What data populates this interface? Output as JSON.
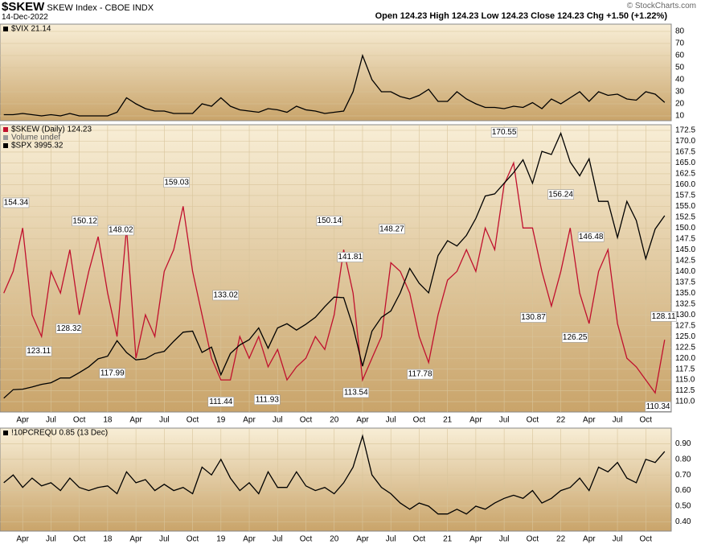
{
  "header": {
    "symbol": "$SKEW",
    "name": "SKEW Index - CBOE INDX",
    "date": "14-Dec-2022",
    "quote": [
      {
        "label": "Open",
        "value": 124.23
      },
      {
        "label": "High",
        "value": 124.23
      },
      {
        "label": "Low",
        "value": 124.23
      },
      {
        "label": "Close",
        "value": 124.23
      },
      {
        "label": "Chg",
        "value": "+1.50 (+1.22%)"
      }
    ],
    "copyright": "© StockCharts.com"
  },
  "chart_data": [
    {
      "type": "line",
      "xlim": [
        0.6,
        71.7
      ],
      "ylim": [
        6,
        86
      ],
      "yticks": [
        10,
        20,
        30,
        40,
        50,
        60,
        70,
        80
      ],
      "grid": true,
      "x": [
        1,
        2,
        3,
        4,
        5,
        6,
        7,
        8,
        9,
        10,
        11,
        12,
        13,
        14,
        15,
        16,
        17,
        18,
        19,
        20,
        21,
        22,
        23,
        24,
        25,
        26,
        27,
        28,
        29,
        30,
        31,
        32,
        33,
        34,
        35,
        36,
        37,
        38,
        39,
        40,
        41,
        42,
        43,
        44,
        45,
        46,
        47,
        48,
        49,
        50,
        51,
        52,
        53,
        54,
        55,
        56,
        57,
        58,
        59,
        60,
        61,
        62,
        63,
        64,
        65,
        66,
        67,
        68,
        69,
        70,
        71
      ],
      "series": [
        {
          "name": "$VIX 21.14",
          "color": "#000000",
          "values": [
            11,
            11,
            12,
            11,
            10,
            11,
            10,
            12,
            10,
            10,
            10,
            10,
            13,
            25,
            20,
            16,
            14,
            14,
            12,
            12,
            12,
            20,
            18,
            25,
            18,
            15,
            14,
            13,
            16,
            15,
            13,
            18,
            15,
            14,
            12,
            13,
            14,
            30,
            60,
            40,
            30,
            30,
            26,
            24,
            27,
            32,
            22,
            22,
            30,
            24,
            20,
            17,
            17,
            16,
            18,
            17,
            21,
            16,
            24,
            20,
            25,
            30,
            22,
            30,
            27,
            28,
            24,
            23,
            30,
            28,
            21.14
          ]
        }
      ]
    },
    {
      "type": "line",
      "xlim": [
        0.6,
        71.7
      ],
      "ylim": [
        107.6,
        173.8
      ],
      "y2lim": [
        2150,
        4850
      ],
      "grid": true,
      "yticks": [
        {
          "value": 110,
          "label": "110.0"
        },
        112.5,
        {
          "value": 115,
          "label": "115.0"
        },
        117.5,
        {
          "value": 120,
          "label": "120.0"
        },
        122.5,
        {
          "value": 125,
          "label": "125.0"
        },
        127.5,
        {
          "value": 130,
          "label": "130.0"
        },
        132.5,
        {
          "value": 135,
          "label": "135.0"
        },
        137.5,
        {
          "value": 140,
          "label": "140.0"
        },
        142.5,
        {
          "value": 145,
          "label": "145.0"
        },
        147.5,
        {
          "value": 150,
          "label": "150.0"
        },
        152.5,
        {
          "value": 155,
          "label": "155.0"
        },
        157.5,
        {
          "value": 160,
          "label": "160.0"
        },
        162.5,
        {
          "value": 165,
          "label": "165.0"
        },
        167.5,
        {
          "value": 170,
          "label": "170.0"
        },
        172.5
      ],
      "xticks": [
        {
          "value": 3,
          "label": "Apr"
        },
        {
          "value": 6,
          "label": "Jul"
        },
        {
          "value": 9,
          "label": "Oct"
        },
        {
          "value": 12,
          "label": "18"
        },
        {
          "value": 15,
          "label": "Apr"
        },
        {
          "value": 18,
          "label": "Jul"
        },
        {
          "value": 21,
          "label": "Oct"
        },
        {
          "value": 24,
          "label": "19"
        },
        {
          "value": 27,
          "label": "Apr"
        },
        {
          "value": 30,
          "label": "Jul"
        },
        {
          "value": 33,
          "label": "Oct"
        },
        {
          "value": 36,
          "label": "20"
        },
        {
          "value": 39,
          "label": "Apr"
        },
        {
          "value": 42,
          "label": "Jul"
        },
        {
          "value": 45,
          "label": "Oct"
        },
        {
          "value": 48,
          "label": "21"
        },
        {
          "value": 51,
          "label": "Apr"
        },
        {
          "value": 54,
          "label": "Jul"
        },
        {
          "value": 57,
          "label": "Oct"
        },
        {
          "value": 60,
          "label": "22"
        },
        {
          "value": 63,
          "label": "Apr"
        },
        {
          "value": 66,
          "label": "Jul"
        },
        {
          "value": 69,
          "label": "Oct"
        }
      ],
      "notes": [
        "Volume undef"
      ],
      "x": [
        1,
        2,
        3,
        4,
        5,
        6,
        7,
        8,
        9,
        10,
        11,
        12,
        13,
        14,
        15,
        16,
        17,
        18,
        19,
        20,
        21,
        22,
        23,
        24,
        25,
        26,
        27,
        28,
        29,
        30,
        31,
        32,
        33,
        34,
        35,
        36,
        37,
        38,
        39,
        40,
        41,
        42,
        43,
        44,
        45,
        46,
        47,
        48,
        49,
        50,
        51,
        52,
        53,
        54,
        55,
        56,
        57,
        58,
        59,
        60,
        61,
        62,
        63,
        64,
        65,
        66,
        67,
        68,
        69,
        70,
        71
      ],
      "series": [
        {
          "name": "$SKEW (Daily) 124.23",
          "color": "#c0102e",
          "values": [
            135,
            140,
            150,
            130,
            125,
            140,
            135,
            145,
            130,
            140,
            148,
            135,
            125,
            150,
            120,
            130,
            125,
            140,
            145,
            155,
            140,
            130,
            120,
            115,
            115,
            125,
            120,
            125,
            118,
            122,
            115,
            118,
            120,
            125,
            122,
            130,
            145,
            135,
            115,
            120,
            125,
            142,
            140,
            135,
            125,
            119,
            130,
            138,
            140,
            145,
            140,
            150,
            145,
            160,
            165,
            150,
            150,
            140,
            132,
            140,
            150,
            135,
            128,
            140,
            145,
            128,
            120,
            118,
            115,
            112,
            124.23
          ]
        },
        {
          "name": "$SPX 3995.32",
          "color": "#000000",
          "axis": "y2",
          "values": [
            2280,
            2360,
            2365,
            2385,
            2410,
            2425,
            2470,
            2470,
            2520,
            2575,
            2650,
            2675,
            2820,
            2710,
            2640,
            2650,
            2700,
            2720,
            2815,
            2900,
            2910,
            2710,
            2760,
            2500,
            2700,
            2780,
            2830,
            2940,
            2750,
            2940,
            2980,
            2920,
            2975,
            3040,
            3140,
            3230,
            3225,
            2950,
            2580,
            2910,
            3040,
            3100,
            3270,
            3500,
            3360,
            3270,
            3620,
            3760,
            3710,
            3810,
            3970,
            4180,
            4200,
            4300,
            4400,
            4520,
            4300,
            4600,
            4570,
            4770,
            4500,
            4370,
            4530,
            4130,
            4130,
            3790,
            4130,
            3950,
            3590,
            3870,
            3995.32
          ]
        }
      ],
      "annotations": [
        {
          "x": 2.3,
          "value": 154.34
        },
        {
          "x": 9.6,
          "value": 150.12
        },
        {
          "x": 13.4,
          "value": 148.02
        },
        {
          "x": 19.3,
          "value": 159.03
        },
        {
          "x": 4.7,
          "value": 123.11
        },
        {
          "x": 7.9,
          "value": 128.32
        },
        {
          "x": 12.5,
          "value": 117.99
        },
        {
          "x": 24.5,
          "value": 133.02
        },
        {
          "x": 24.0,
          "value": 111.44
        },
        {
          "x": 28.9,
          "value": 111.93
        },
        {
          "x": 35.5,
          "value": 150.14
        },
        {
          "x": 37.7,
          "value": 141.81
        },
        {
          "x": 38.3,
          "value": 113.54
        },
        {
          "x": 42.1,
          "value": 148.27
        },
        {
          "x": 45.1,
          "value": 117.78
        },
        {
          "x": 54.0,
          "value": 170.55
        },
        {
          "x": 60.0,
          "value": 156.24
        },
        {
          "x": 57.1,
          "value": 130.87
        },
        {
          "x": 61.5,
          "value": 126.25
        },
        {
          "x": 63.2,
          "value": 146.48
        },
        {
          "x": 70.9,
          "value": 128.11
        },
        {
          "x": 70.3,
          "value": 110.34
        }
      ]
    },
    {
      "type": "line",
      "xlim": [
        0.6,
        71.7
      ],
      "ylim": [
        0.34,
        1.0
      ],
      "grid": true,
      "yticks": [
        {
          "value": 0.4,
          "label": "0.40"
        },
        {
          "value": 0.5,
          "label": "0.50"
        },
        {
          "value": 0.6,
          "label": "0.60"
        },
        {
          "value": 0.7,
          "label": "0.70"
        },
        {
          "value": 0.8,
          "label": "0.80"
        },
        {
          "value": 0.9,
          "label": "0.90"
        }
      ],
      "xticks": [
        {
          "value": 3,
          "label": "Apr"
        },
        {
          "value": 6,
          "label": "Jul"
        },
        {
          "value": 9,
          "label": "Oct"
        },
        {
          "value": 12,
          "label": "18"
        },
        {
          "value": 15,
          "label": "Apr"
        },
        {
          "value": 18,
          "label": "Jul"
        },
        {
          "value": 21,
          "label": "Oct"
        },
        {
          "value": 24,
          "label": "19"
        },
        {
          "value": 27,
          "label": "Apr"
        },
        {
          "value": 30,
          "label": "Jul"
        },
        {
          "value": 33,
          "label": "Oct"
        },
        {
          "value": 36,
          "label": "20"
        },
        {
          "value": 39,
          "label": "Apr"
        },
        {
          "value": 42,
          "label": "Jul"
        },
        {
          "value": 45,
          "label": "Oct"
        },
        {
          "value": 48,
          "label": "21"
        },
        {
          "value": 51,
          "label": "Apr"
        },
        {
          "value": 54,
          "label": "Jul"
        },
        {
          "value": 57,
          "label": "Oct"
        },
        {
          "value": 60,
          "label": "22"
        },
        {
          "value": 63,
          "label": "Apr"
        },
        {
          "value": 66,
          "label": "Jul"
        },
        {
          "value": 69,
          "label": "Oct"
        }
      ],
      "x": [
        1,
        2,
        3,
        4,
        5,
        6,
        7,
        8,
        9,
        10,
        11,
        12,
        13,
        14,
        15,
        16,
        17,
        18,
        19,
        20,
        21,
        22,
        23,
        24,
        25,
        26,
        27,
        28,
        29,
        30,
        31,
        32,
        33,
        34,
        35,
        36,
        37,
        38,
        39,
        40,
        41,
        42,
        43,
        44,
        45,
        46,
        47,
        48,
        49,
        50,
        51,
        52,
        53,
        54,
        55,
        56,
        57,
        58,
        59,
        60,
        61,
        62,
        63,
        64,
        65,
        66,
        67,
        68,
        69,
        70,
        71
      ],
      "series": [
        {
          "name": "!10PCREQU 0.85 (13 Dec)",
          "color": "#000000",
          "values": [
            0.65,
            0.7,
            0.62,
            0.68,
            0.63,
            0.65,
            0.6,
            0.68,
            0.62,
            0.6,
            0.62,
            0.63,
            0.58,
            0.72,
            0.65,
            0.67,
            0.6,
            0.64,
            0.6,
            0.62,
            0.58,
            0.75,
            0.7,
            0.8,
            0.68,
            0.6,
            0.65,
            0.58,
            0.72,
            0.62,
            0.62,
            0.72,
            0.63,
            0.6,
            0.62,
            0.58,
            0.65,
            0.75,
            0.95,
            0.7,
            0.62,
            0.58,
            0.52,
            0.48,
            0.52,
            0.5,
            0.45,
            0.45,
            0.48,
            0.45,
            0.5,
            0.48,
            0.52,
            0.55,
            0.57,
            0.55,
            0.6,
            0.52,
            0.55,
            0.6,
            0.62,
            0.68,
            0.6,
            0.75,
            0.72,
            0.78,
            0.68,
            0.65,
            0.8,
            0.78,
            0.85
          ]
        }
      ]
    }
  ]
}
